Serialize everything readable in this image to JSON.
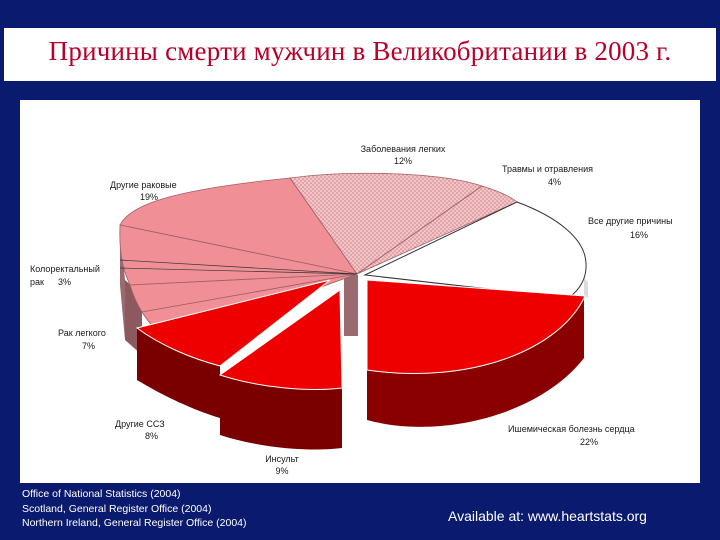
{
  "title": "Причины смерти мужчин в Великобритании в 2003 г.",
  "chart_data": {
    "type": "pie",
    "slices": [
      {
        "label": "Заболевания легких",
        "value": 12,
        "value_label": "12%"
      },
      {
        "label": "Травмы и отравления",
        "value": 4,
        "value_label": "4%"
      },
      {
        "label": "Все другие причины",
        "value": 16,
        "value_label": "16%"
      },
      {
        "label": "Ишемическая болезнь сердца",
        "value": 22,
        "value_label": "22%"
      },
      {
        "label": "Инсульт",
        "value": 9,
        "value_label": "9%"
      },
      {
        "label": "Другие ССЗ",
        "value": 8,
        "value_label": "8%"
      },
      {
        "label": "Рак легкого",
        "value": 7,
        "value_label": "7%"
      },
      {
        "label": "Колоректальный рак",
        "value": 3,
        "value_label": "3%"
      },
      {
        "label": "Другие раковые",
        "value": 19,
        "value_label": "19%"
      }
    ]
  },
  "sources": [
    "Office of National Statistics (2004)",
    "Scotland, General Register Office (2004)",
    "Northern Ireland, General Register Office (2004)"
  ],
  "available": "Available at: www.heartstats.org",
  "colors": {
    "background": "#0a1a6e",
    "title": "#b8002a",
    "red": "#ee0000",
    "dark_red": "#7a0000",
    "pink": "#f08f96",
    "light_pink": "#f4c3c6"
  }
}
